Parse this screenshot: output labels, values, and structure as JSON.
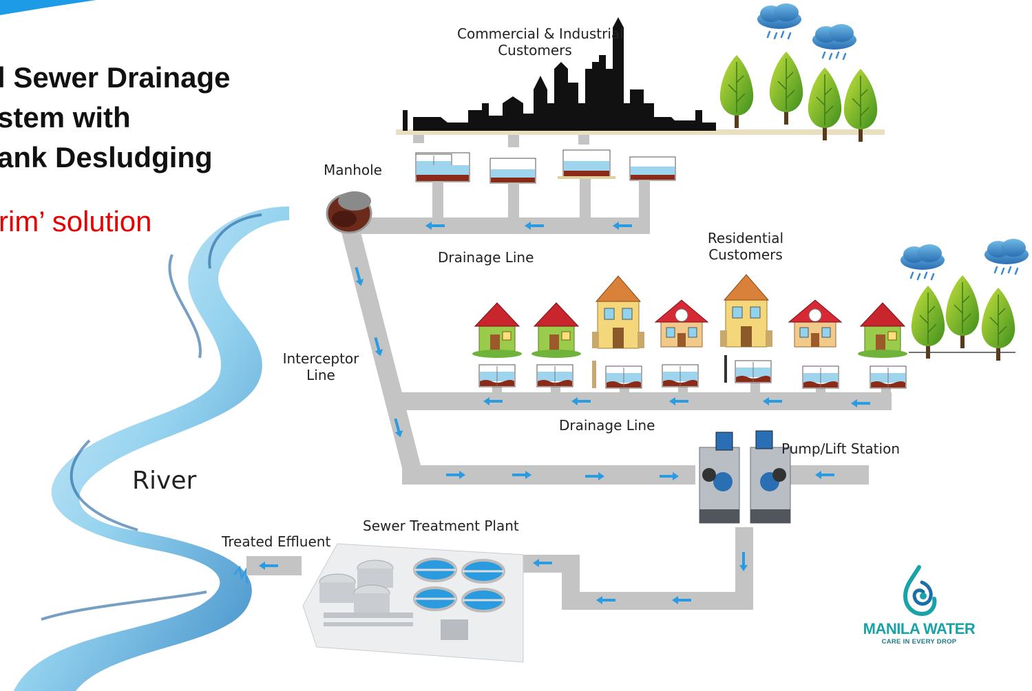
{
  "title": {
    "line1": "l Sewer Drainage",
    "line2": "stem with",
    "line3": "ank Desludging"
  },
  "subtitle": "rim’ solution",
  "labels": {
    "commercial_line1": "Commercial & Industrial",
    "commercial_line2": "Customers",
    "manhole": "Manhole",
    "drainage_line_top": "Drainage Line",
    "residential_line1": "Residential",
    "residential_line2": "Customers",
    "interceptor_line1": "Interceptor",
    "interceptor_line2": "Line",
    "drainage_line_mid": "Drainage Line",
    "pump_station": "Pump/Lift Station",
    "river": "River",
    "sewer_plant": "Sewer Treatment Plant",
    "treated_effluent": "Treated Effluent"
  },
  "logo": {
    "name": "MANILA WATER",
    "tagline": "CARE IN EVERY DROP",
    "icon": "water-swirl-icon"
  },
  "colors": {
    "pipe": "#c4c4c4",
    "arrow": "#2a9be0",
    "water": "#8fd3ef",
    "sludge": "#8b2a16",
    "river": "#4aa3d6",
    "title": "#111111",
    "subtitle": "#e60000",
    "logo": "#17a3a8"
  },
  "icons": [
    "rain-cloud-icon",
    "tree-icon",
    "house-icon",
    "septic-tank-icon",
    "factory-skyline-icon",
    "manhole-icon",
    "pump-icon",
    "treatment-plant-icon",
    "flow-arrow-icon"
  ]
}
